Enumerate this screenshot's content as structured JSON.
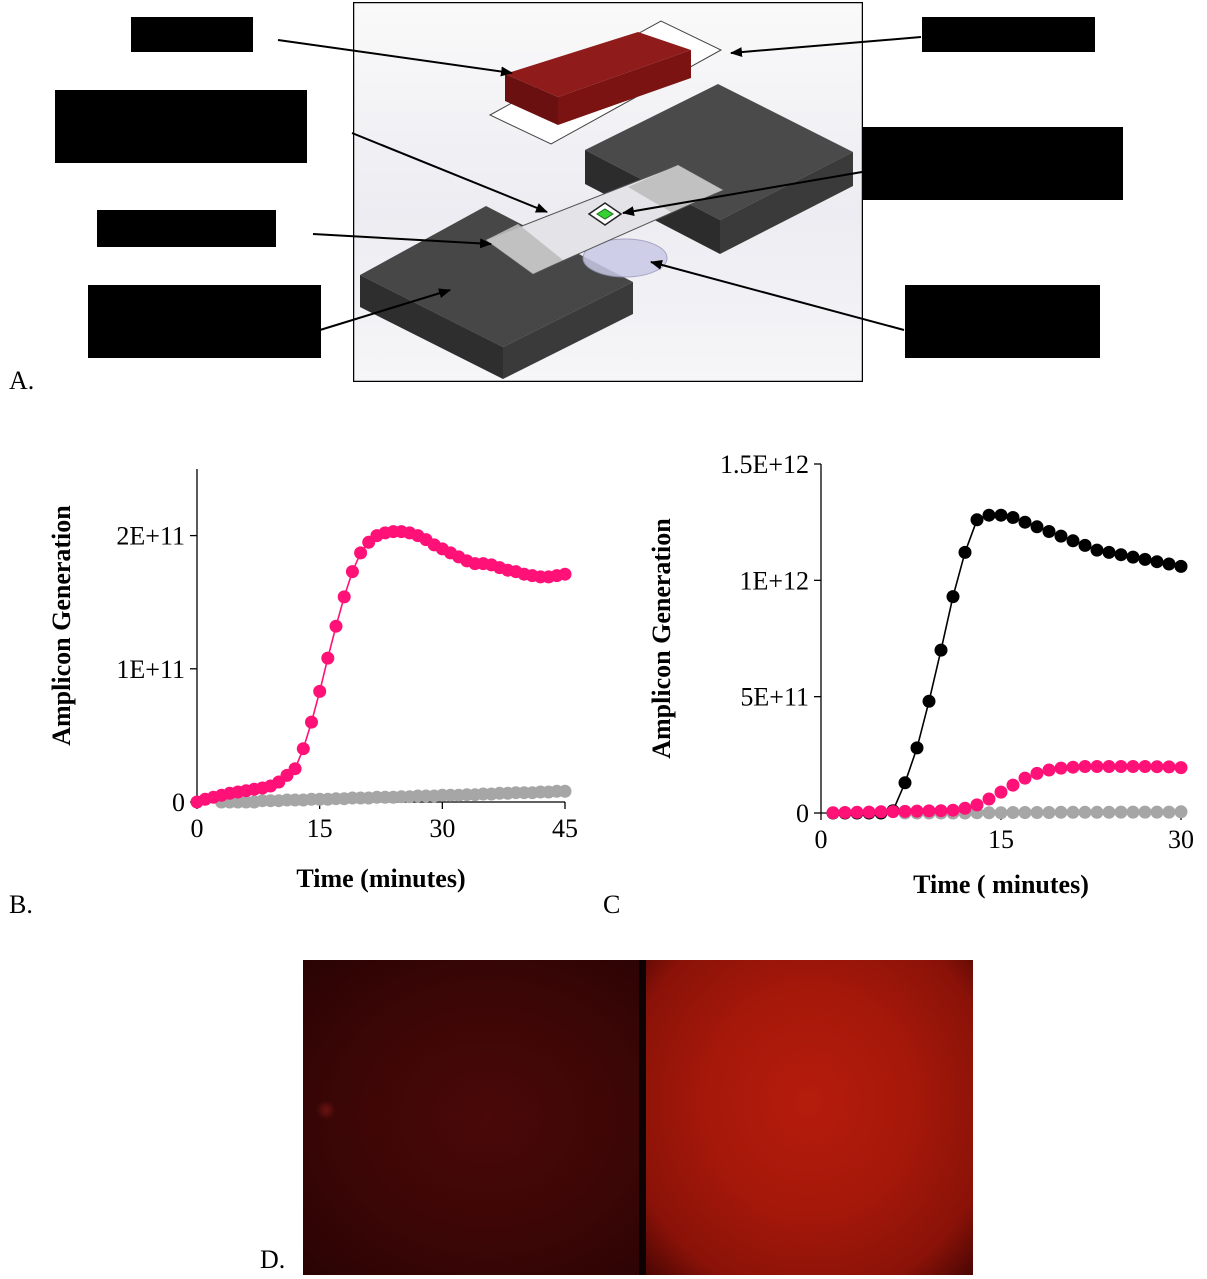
{
  "figure": {
    "panel_labels": {
      "a": "A.",
      "b": "B.",
      "c": "C",
      "d": "D."
    }
  },
  "colors": {
    "series_pink": "#ff1177",
    "series_gray": "#a6a6a6",
    "series_black": "#000000",
    "heater_block": "#3c3c3c",
    "magnet_block": "#7a1414",
    "square_dark": "#3a0606",
    "square_bright": "#b01a0a",
    "gfp_spot": "#35d135"
  },
  "chart_data": [
    {
      "type": "scatter",
      "panel": "B.",
      "xlabel": "Time (minutes)",
      "ylabel": "Amplicon Generation",
      "xlim": [
        0,
        45
      ],
      "ylim": [
        0,
        250000000000
      ],
      "xticks": [
        "0",
        "15",
        "30",
        "45"
      ],
      "yticks": [
        "0",
        "1E+11",
        "2E+11"
      ],
      "legend": "none",
      "grid": false,
      "series": [
        {
          "color": "#ff1177",
          "line": true,
          "x": [
            0,
            1,
            2,
            3,
            4,
            5,
            6,
            7,
            8,
            9,
            10,
            11,
            12,
            13,
            14,
            15,
            16,
            17,
            18,
            19,
            20,
            21,
            22,
            23,
            24,
            25,
            26,
            27,
            28,
            29,
            30,
            31,
            32,
            33,
            34,
            35,
            36,
            37,
            38,
            39,
            40,
            41,
            42,
            43,
            44,
            45
          ],
          "y": [
            0,
            2000000000.0,
            3500000000.0,
            5000000000.0,
            6500000000.0,
            7500000000.0,
            8500000000.0,
            9500000000.0,
            10500000000.0,
            12000000000.0,
            15000000000.0,
            20000000000.0,
            25000000000.0,
            40000000000.0,
            60000000000.0,
            83000000000.0,
            108000000000.0,
            132000000000.0,
            154000000000.0,
            173000000000.0,
            187000000000.0,
            195000000000.0,
            200000000000.0,
            202000000000.0,
            203000000000.0,
            203000000000.0,
            202000000000.0,
            200000000000.0,
            197000000000.0,
            193000000000.0,
            190000000000.0,
            187000000000.0,
            184000000000.0,
            181000000000.0,
            179000000000.0,
            179000000000.0,
            178000000000.0,
            176000000000.0,
            174000000000.0,
            173000000000.0,
            171000000000.0,
            170000000000.0,
            169000000000.0,
            169000000000.0,
            170000000000.0,
            171000000000.0
          ]
        },
        {
          "color": "#a6a6a6",
          "line": false,
          "x": [
            3,
            4,
            5,
            6,
            7,
            8,
            9,
            10,
            11,
            12,
            13,
            14,
            15,
            16,
            17,
            18,
            19,
            20,
            21,
            22,
            23,
            24,
            25,
            26,
            27,
            28,
            29,
            30,
            31,
            32,
            33,
            34,
            35,
            36,
            37,
            38,
            39,
            40,
            41,
            42,
            43,
            44,
            45
          ],
          "y": [
            0,
            0,
            0,
            0,
            0,
            1000000000.0,
            1000000000.0,
            1000000000.0,
            1500000000.0,
            1500000000.0,
            1500000000.0,
            2000000000.0,
            2000000000.0,
            2000000000.0,
            2500000000.0,
            2500000000.0,
            3000000000.0,
            3000000000.0,
            3000000000.0,
            3500000000.0,
            3500000000.0,
            3500000000.0,
            4000000000.0,
            4000000000.0,
            4500000000.0,
            4500000000.0,
            4500000000.0,
            5000000000.0,
            5000000000.0,
            5000000000.0,
            5500000000.0,
            5500000000.0,
            6000000000.0,
            6000000000.0,
            6500000000.0,
            6500000000.0,
            7000000000.0,
            7000000000.0,
            7000000000.0,
            7500000000.0,
            7500000000.0,
            8000000000.0,
            8000000000.0
          ]
        }
      ]
    },
    {
      "type": "scatter",
      "panel": "C",
      "xlabel": "Time ( minutes)",
      "ylabel": "Amplicon Generation",
      "xlim": [
        0,
        30
      ],
      "ylim": [
        0,
        1500000000000
      ],
      "xticks": [
        "0",
        "15",
        "30"
      ],
      "yticks": [
        "0",
        "5E+11",
        "1E+12",
        "1.5E+12"
      ],
      "legend": "none",
      "grid": false,
      "series": [
        {
          "color": "#000000",
          "line": true,
          "x": [
            1,
            2,
            3,
            4,
            5,
            6,
            7,
            8,
            9,
            10,
            11,
            12,
            13,
            14,
            15,
            16,
            17,
            18,
            19,
            20,
            21,
            22,
            23,
            24,
            25,
            26,
            27,
            28,
            29,
            30
          ],
          "y": [
            0,
            0,
            0,
            0,
            0,
            10000000000.0,
            130000000000.0,
            280000000000.0,
            480000000000.0,
            700000000000.0,
            930000000000.0,
            1120000000000.0,
            1260000000000.0,
            1280000000000.0,
            1280000000000.0,
            1270000000000.0,
            1250000000000.0,
            1230000000000.0,
            1210000000000.0,
            1190000000000.0,
            1170000000000.0,
            1150000000000.0,
            1130000000000.0,
            1120000000000.0,
            1110000000000.0,
            1100000000000.0,
            1090000000000.0,
            1080000000000.0,
            1070000000000.0,
            1060000000000.0
          ]
        },
        {
          "color": "#ff1177",
          "line": false,
          "x": [
            1,
            2,
            3,
            4,
            5,
            6,
            7,
            8,
            9,
            10,
            11,
            12,
            13,
            14,
            15,
            16,
            17,
            18,
            19,
            20,
            21,
            22,
            23,
            24,
            25,
            26,
            27,
            28,
            29,
            30
          ],
          "y": [
            1000000000.0,
            2000000000.0,
            3000000000.0,
            4000000000.0,
            5000000000.0,
            6000000000.0,
            7000000000.0,
            8000000000.0,
            9000000000.0,
            10000000000.0,
            12000000000.0,
            20000000000.0,
            35000000000.0,
            60000000000.0,
            90000000000.0,
            120000000000.0,
            150000000000.0,
            170000000000.0,
            185000000000.0,
            193000000000.0,
            197000000000.0,
            200000000000.0,
            200000000000.0,
            200000000000.0,
            200000000000.0,
            200000000000.0,
            200000000000.0,
            199000000000.0,
            198000000000.0,
            195000000000.0
          ]
        },
        {
          "color": "#a6a6a6",
          "line": false,
          "x": [
            7,
            8,
            9,
            10,
            11,
            12,
            13,
            14,
            15,
            16,
            17,
            18,
            19,
            20,
            21,
            22,
            23,
            24,
            25,
            26,
            27,
            28,
            29,
            30
          ],
          "y": [
            0,
            0,
            0,
            0,
            0,
            0,
            1000000000.0,
            1000000000.0,
            1000000000.0,
            2000000000.0,
            2000000000.0,
            2000000000.0,
            2000000000.0,
            3000000000.0,
            3000000000.0,
            3000000000.0,
            3000000000.0,
            3000000000.0,
            4000000000.0,
            4000000000.0,
            4000000000.0,
            4000000000.0,
            4000000000.0,
            5000000000.0
          ]
        }
      ]
    }
  ]
}
